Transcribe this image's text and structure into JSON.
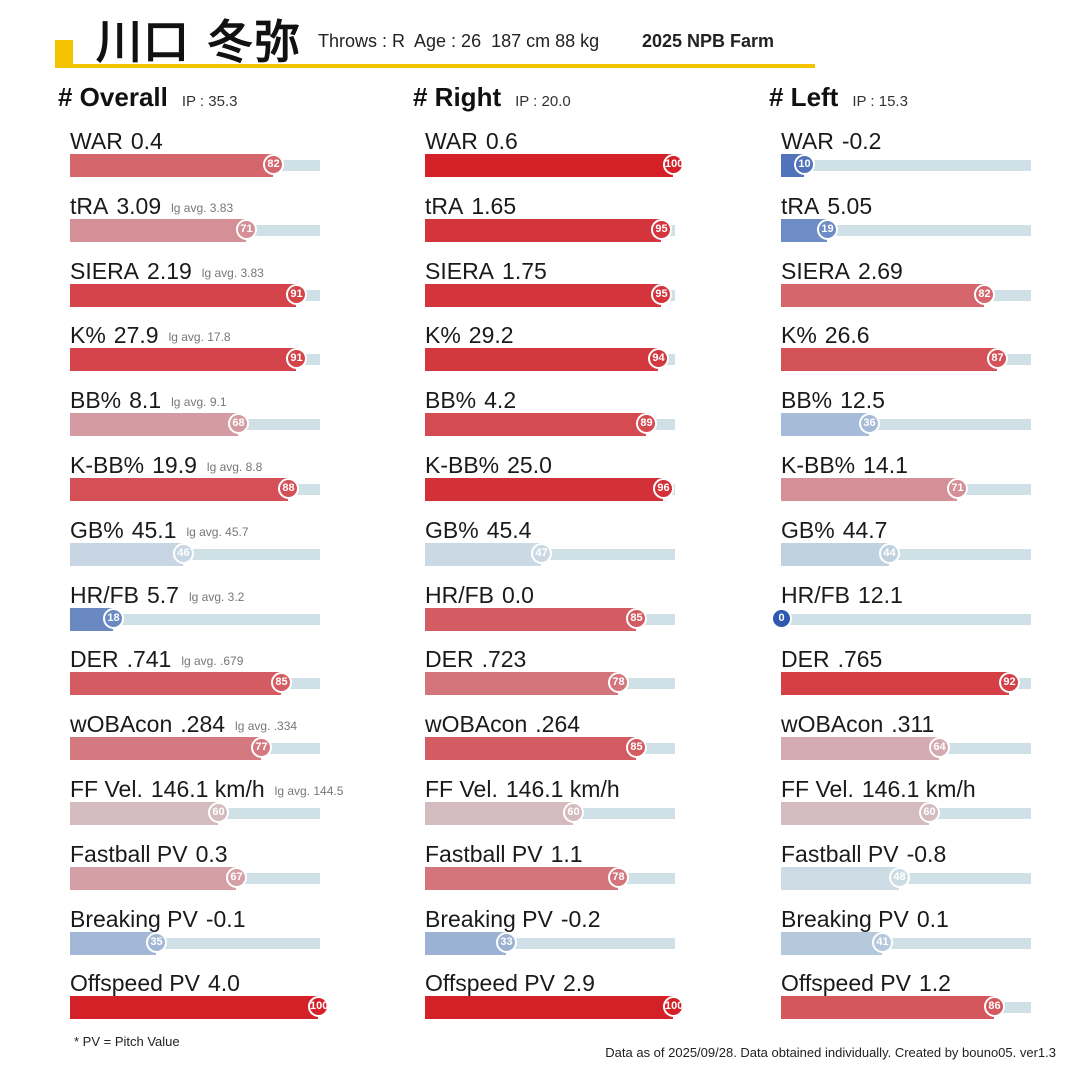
{
  "header": {
    "name": "川口 冬弥",
    "throws": "Throws : R",
    "age": "Age : 26",
    "body": "187 cm 88 kg",
    "league": "2025 NPB Farm"
  },
  "columns": [
    {
      "title": "# Overall",
      "ip": "IP : 35.3",
      "metrics": [
        {
          "name": "WAR",
          "value": "0.4",
          "lg": "",
          "pct": 82
        },
        {
          "name": "tRA",
          "value": "3.09",
          "lg": "lg avg. 3.83",
          "pct": 71
        },
        {
          "name": "SIERA",
          "value": "2.19",
          "lg": "lg avg. 3.83",
          "pct": 91
        },
        {
          "name": "K%",
          "value": "27.9",
          "lg": "lg avg. 17.8",
          "pct": 91
        },
        {
          "name": "BB%",
          "value": "8.1",
          "lg": "lg avg. 9.1",
          "pct": 68
        },
        {
          "name": "K-BB%",
          "value": "19.9",
          "lg": "lg avg. 8.8",
          "pct": 88
        },
        {
          "name": "GB%",
          "value": "45.1",
          "lg": "lg avg. 45.7",
          "pct": 46
        },
        {
          "name": "HR/FB",
          "value": "5.7",
          "lg": "lg avg. 3.2",
          "pct": 18
        },
        {
          "name": "DER",
          "value": ".741",
          "lg": "lg avg. .679",
          "pct": 85
        },
        {
          "name": "wOBAcon",
          "value": ".284",
          "lg": "lg avg. .334",
          "pct": 77
        },
        {
          "name": "FF Vel.",
          "value": "146.1 km/h",
          "lg": "lg avg. 144.5",
          "pct": 60
        },
        {
          "name": "Fastball PV",
          "value": "0.3",
          "lg": "",
          "pct": 67
        },
        {
          "name": "Breaking PV",
          "value": "-0.1",
          "lg": "",
          "pct": 35
        },
        {
          "name": "Offspeed PV",
          "value": "4.0",
          "lg": "",
          "pct": 100
        }
      ]
    },
    {
      "title": "# Right",
      "ip": "IP : 20.0",
      "metrics": [
        {
          "name": "WAR",
          "value": "0.6",
          "lg": "",
          "pct": 100
        },
        {
          "name": "tRA",
          "value": "1.65",
          "lg": "",
          "pct": 95
        },
        {
          "name": "SIERA",
          "value": "1.75",
          "lg": "",
          "pct": 95
        },
        {
          "name": "K%",
          "value": "29.2",
          "lg": "",
          "pct": 94
        },
        {
          "name": "BB%",
          "value": "4.2",
          "lg": "",
          "pct": 89
        },
        {
          "name": "K-BB%",
          "value": "25.0",
          "lg": "",
          "pct": 96
        },
        {
          "name": "GB%",
          "value": "45.4",
          "lg": "",
          "pct": 47
        },
        {
          "name": "HR/FB",
          "value": "0.0",
          "lg": "",
          "pct": 85
        },
        {
          "name": "DER",
          "value": ".723",
          "lg": "",
          "pct": 78
        },
        {
          "name": "wOBAcon",
          "value": ".264",
          "lg": "",
          "pct": 85
        },
        {
          "name": "FF Vel.",
          "value": "146.1 km/h",
          "lg": "",
          "pct": 60
        },
        {
          "name": "Fastball PV",
          "value": "1.1",
          "lg": "",
          "pct": 78
        },
        {
          "name": "Breaking PV",
          "value": "-0.2",
          "lg": "",
          "pct": 33
        },
        {
          "name": "Offspeed PV",
          "value": "2.9",
          "lg": "",
          "pct": 100
        }
      ]
    },
    {
      "title": "# Left",
      "ip": "IP : 15.3",
      "metrics": [
        {
          "name": "WAR",
          "value": "-0.2",
          "lg": "",
          "pct": 10
        },
        {
          "name": "tRA",
          "value": "5.05",
          "lg": "",
          "pct": 19
        },
        {
          "name": "SIERA",
          "value": "2.69",
          "lg": "",
          "pct": 82
        },
        {
          "name": "K%",
          "value": "26.6",
          "lg": "",
          "pct": 87
        },
        {
          "name": "BB%",
          "value": "12.5",
          "lg": "",
          "pct": 36
        },
        {
          "name": "K-BB%",
          "value": "14.1",
          "lg": "",
          "pct": 71
        },
        {
          "name": "GB%",
          "value": "44.7",
          "lg": "",
          "pct": 44
        },
        {
          "name": "HR/FB",
          "value": "12.1",
          "lg": "",
          "pct": 0
        },
        {
          "name": "DER",
          "value": ".765",
          "lg": "",
          "pct": 92
        },
        {
          "name": "wOBAcon",
          "value": ".311",
          "lg": "",
          "pct": 64
        },
        {
          "name": "FF Vel.",
          "value": "146.1 km/h",
          "lg": "",
          "pct": 60
        },
        {
          "name": "Fastball PV",
          "value": "-0.8",
          "lg": "",
          "pct": 48
        },
        {
          "name": "Breaking PV",
          "value": "0.1",
          "lg": "",
          "pct": 41
        },
        {
          "name": "Offspeed PV",
          "value": "1.2",
          "lg": "",
          "pct": 86
        }
      ]
    }
  ],
  "footnote": "* PV = Pitch Value",
  "credit": "Data as of 2025/09/28. Data obtained individually. Created by bouno05.  ver1.3",
  "colors": {
    "accent": "#f5c400",
    "track": "#cfe0e6",
    "scale_low": "#2f58b0",
    "scale_mid": "#d4e1e6",
    "scale_high": "#d42128"
  }
}
